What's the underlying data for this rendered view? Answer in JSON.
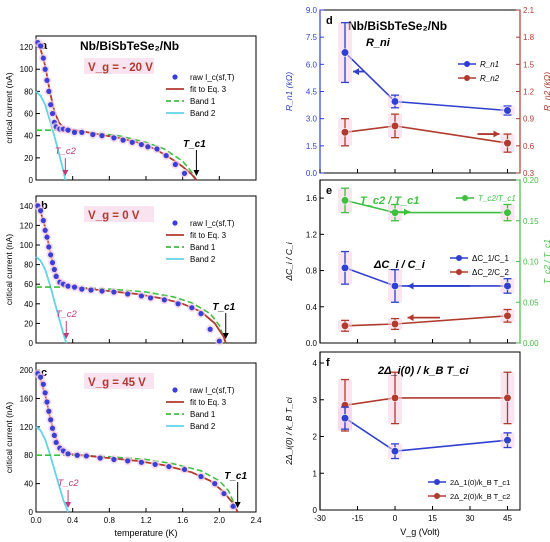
{
  "chart_data": [
    {
      "panel": "a",
      "type": "scatter",
      "title": "Nb/BiSbTeSe₂/Nb",
      "gate_label": "V_g = - 20 V",
      "xlabel": "",
      "ylabel": "critical current (nA)",
      "xlim": [
        0,
        2.4
      ],
      "ylim": [
        0,
        130
      ],
      "yticks": [
        0,
        20,
        40,
        60,
        80,
        100,
        120
      ],
      "legend": [
        "raw I_c(sf,T)",
        "fit to Eq. 3",
        "Band 1",
        "Band 2"
      ],
      "tc1_label": "T_c1",
      "tc1": 1.75,
      "tc2_label": "T_c2",
      "tc2": 0.32,
      "raw": {
        "x": [
          0.02,
          0.05,
          0.08,
          0.1,
          0.12,
          0.14,
          0.16,
          0.18,
          0.2,
          0.22,
          0.26,
          0.3,
          0.35,
          0.42,
          0.5,
          0.62,
          0.72,
          0.85,
          0.95,
          1.05,
          1.15,
          1.22,
          1.32,
          1.42,
          1.52,
          1.62
        ],
        "y": [
          124,
          121,
          110,
          100,
          90,
          80,
          68,
          60,
          52,
          48,
          46,
          46,
          45,
          43,
          43,
          41,
          40,
          38,
          36,
          34,
          32,
          30,
          28,
          22,
          14,
          6
        ]
      },
      "fit": {
        "x": [
          0,
          0.05,
          0.1,
          0.15,
          0.2,
          0.25,
          0.3,
          0.35,
          0.5,
          0.7,
          0.9,
          1.1,
          1.3,
          1.5,
          1.6,
          1.7,
          1.75
        ],
        "y": [
          125,
          118,
          103,
          80,
          62,
          52,
          47,
          46,
          44,
          41,
          38,
          34,
          28,
          18,
          12,
          5,
          0
        ]
      },
      "band1": {
        "x": [
          0,
          0.3,
          0.6,
          0.9,
          1.2,
          1.4,
          1.6,
          1.7,
          1.75
        ],
        "y": [
          45,
          45,
          43,
          40,
          34,
          28,
          17,
          7,
          0
        ]
      },
      "band2": {
        "x": [
          0,
          0.05,
          0.1,
          0.15,
          0.2,
          0.25,
          0.3,
          0.32
        ],
        "y": [
          80,
          76,
          68,
          54,
          40,
          24,
          8,
          0
        ]
      }
    },
    {
      "panel": "b",
      "type": "scatter",
      "gate_label": "V_g = 0 V",
      "xlabel": "",
      "ylabel": "critical current (nA)",
      "xlim": [
        0,
        2.4
      ],
      "ylim": [
        0,
        150
      ],
      "yticks": [
        0,
        20,
        40,
        60,
        80,
        100,
        120,
        140
      ],
      "legend": [
        "raw I_c(sf,T)",
        "fit to Eq. 3",
        "Band 1",
        "Band 2"
      ],
      "tc1_label": "T_c1",
      "tc1": 2.07,
      "tc2_label": "T_c2",
      "tc2": 0.33,
      "raw": {
        "x": [
          0.02,
          0.05,
          0.08,
          0.1,
          0.12,
          0.14,
          0.16,
          0.18,
          0.2,
          0.22,
          0.26,
          0.3,
          0.35,
          0.42,
          0.5,
          0.6,
          0.72,
          0.85,
          1.0,
          1.15,
          1.25,
          1.4,
          1.55,
          1.7,
          1.8,
          1.9,
          2.0
        ],
        "y": [
          140,
          135,
          125,
          115,
          108,
          98,
          90,
          82,
          75,
          68,
          62,
          60,
          58,
          57,
          55,
          54,
          53,
          52,
          50,
          48,
          46,
          44,
          40,
          36,
          30,
          14,
          2
        ]
      },
      "fit": {
        "x": [
          0,
          0.05,
          0.1,
          0.15,
          0.2,
          0.25,
          0.3,
          0.35,
          0.5,
          0.8,
          1.1,
          1.4,
          1.6,
          1.8,
          1.95,
          2.05,
          2.07
        ],
        "y": [
          143,
          134,
          118,
          95,
          75,
          64,
          60,
          58,
          56,
          53,
          50,
          45,
          40,
          32,
          20,
          6,
          0
        ]
      },
      "band1": {
        "x": [
          0,
          0.4,
          0.8,
          1.2,
          1.5,
          1.7,
          1.9,
          2.0,
          2.07
        ],
        "y": [
          57,
          57,
          55,
          52,
          47,
          41,
          30,
          18,
          0
        ]
      },
      "band2": {
        "x": [
          0,
          0.05,
          0.1,
          0.15,
          0.2,
          0.25,
          0.3,
          0.33
        ],
        "y": [
          88,
          84,
          75,
          60,
          43,
          26,
          9,
          0
        ]
      }
    },
    {
      "panel": "c",
      "type": "scatter",
      "gate_label": "V_g = 45 V",
      "xlabel": "temperature (K)",
      "ylabel": "critical current (nA)",
      "xlim": [
        0,
        2.4
      ],
      "ylim": [
        0,
        210
      ],
      "yticks": [
        0,
        40,
        80,
        120,
        160,
        200
      ],
      "xticks": [
        0.0,
        0.4,
        0.8,
        1.2,
        1.6,
        2.0,
        2.4
      ],
      "legend": [
        "raw I_c(sf,T)",
        "fit to Eq. 3",
        "Band 1",
        "Band 2"
      ],
      "tc1_label": "T_c1",
      "tc1": 2.2,
      "tc2_label": "T_c2",
      "tc2": 0.35,
      "raw": {
        "x": [
          0.02,
          0.05,
          0.08,
          0.1,
          0.12,
          0.14,
          0.16,
          0.18,
          0.2,
          0.22,
          0.26,
          0.3,
          0.35,
          0.45,
          0.55,
          0.7,
          0.85,
          1.0,
          1.15,
          1.3,
          1.45,
          1.62,
          1.8,
          1.95,
          2.05,
          2.15
        ],
        "y": [
          195,
          190,
          180,
          168,
          155,
          142,
          130,
          118,
          108,
          98,
          90,
          86,
          82,
          80,
          79,
          76,
          74,
          72,
          70,
          67,
          64,
          60,
          50,
          40,
          26,
          8
        ]
      },
      "fit": {
        "x": [
          0,
          0.05,
          0.1,
          0.15,
          0.2,
          0.25,
          0.3,
          0.35,
          0.5,
          0.8,
          1.1,
          1.4,
          1.7,
          1.9,
          2.05,
          2.15,
          2.2
        ],
        "y": [
          198,
          186,
          165,
          135,
          110,
          94,
          86,
          82,
          80,
          76,
          72,
          66,
          56,
          44,
          28,
          12,
          0
        ]
      },
      "band1": {
        "x": [
          0,
          0.4,
          0.8,
          1.2,
          1.5,
          1.8,
          2.0,
          2.1,
          2.2
        ],
        "y": [
          80,
          80,
          78,
          74,
          68,
          58,
          44,
          30,
          0
        ]
      },
      "band2": {
        "x": [
          0,
          0.05,
          0.1,
          0.15,
          0.2,
          0.25,
          0.3,
          0.35
        ],
        "y": [
          120,
          115,
          102,
          82,
          60,
          38,
          16,
          0
        ]
      }
    },
    {
      "panel": "d",
      "type": "line",
      "title": "Nb/BiSbTeSe₂/Nb",
      "subtitle": "R_ni",
      "ylabel": "R_n1 (kΩ)",
      "ylabel_right": "R_n2 (kΩ)",
      "ylim": [
        0,
        9
      ],
      "ylim_right": [
        0.3,
        2.1
      ],
      "yticks": [
        0.0,
        1.5,
        3.0,
        4.5,
        6.0,
        7.5,
        9.0
      ],
      "yticks_right": [
        0.3,
        0.6,
        0.9,
        1.2,
        1.5,
        1.8,
        2.1
      ],
      "legend": [
        "R_n1",
        "R_n2"
      ],
      "series": [
        {
          "name": "R_n1",
          "x": [
            -20,
            0,
            45
          ],
          "y": [
            6.65,
            3.95,
            3.45
          ],
          "err": [
            1.65,
            0.35,
            0.25
          ]
        },
        {
          "name": "R_n2",
          "x": [
            -20,
            0,
            45
          ],
          "y": [
            0.75,
            0.82,
            0.63
          ],
          "err": [
            0.15,
            0.13,
            0.1
          ]
        }
      ]
    },
    {
      "panel": "e",
      "type": "line",
      "subtitle_top": "T_c2 / T_c1",
      "subtitle": "ΔC_i / C_i",
      "ylabel": "ΔC_i / C_i",
      "ylabel_right": "T_c2 / T_c1",
      "ylim": [
        0,
        1.8
      ],
      "ylim_right": [
        0,
        0.2
      ],
      "yticks": [
        0.0,
        0.4,
        0.8,
        1.2,
        1.6
      ],
      "yticks_right": [
        0.0,
        0.05,
        0.1,
        0.15,
        0.2
      ],
      "legend": [
        "T_c2/T_c1",
        "ΔC_1/C_1",
        "ΔC_2/C_2"
      ],
      "series": [
        {
          "name": "T_c2/T_c1",
          "x": [
            -20,
            0,
            45
          ],
          "y": [
            0.175,
            0.16,
            0.16
          ],
          "err": [
            0.015,
            0.01,
            0.01
          ]
        },
        {
          "name": "ΔC_1/C_1",
          "x": [
            -20,
            0,
            45
          ],
          "y": [
            0.83,
            0.63,
            0.63
          ],
          "err": [
            0.18,
            0.18,
            0.08
          ]
        },
        {
          "name": "ΔC_2/C_2",
          "x": [
            -20,
            0,
            45
          ],
          "y": [
            0.19,
            0.21,
            0.3
          ],
          "err": [
            0.06,
            0.06,
            0.07
          ]
        }
      ]
    },
    {
      "panel": "f",
      "type": "line",
      "subtitle": "2Δ_i(0) / k_B T_ci",
      "xlabel": "V_g (Volt)",
      "ylabel": "2Δ_i(0) / k_B T_ci",
      "xlim": [
        -30,
        50
      ],
      "ylim": [
        0,
        4.3
      ],
      "xticks": [
        -30,
        -15,
        0,
        15,
        30,
        45
      ],
      "yticks": [
        0,
        1,
        2,
        3,
        4
      ],
      "legend": [
        "2Δ_1(0)/k_B T_c1",
        "2Δ_2(0)/k_B T_c2"
      ],
      "series": [
        {
          "name": "2Δ_1(0)/k_B T_c1",
          "x": [
            -20,
            0,
            45
          ],
          "y": [
            2.5,
            1.6,
            1.9
          ],
          "err": [
            0.3,
            0.2,
            0.2
          ]
        },
        {
          "name": "2Δ_2(0)/k_B T_c2",
          "x": [
            -20,
            0,
            45
          ],
          "y": [
            2.85,
            3.05,
            3.05
          ],
          "err": [
            0.7,
            0.7,
            0.7
          ]
        }
      ]
    }
  ],
  "colors": {
    "raw": "#3a3fd6",
    "fit": "#b03a2e",
    "band1": "#3fbf3f",
    "band2": "#63d3e8",
    "red_axis": "#b03a2e",
    "blue_axis": "#2f3fd0",
    "green_axis": "#3fbf3f",
    "magenta_text": "#c03a7a",
    "pink_bg": "#f5d0e6"
  }
}
